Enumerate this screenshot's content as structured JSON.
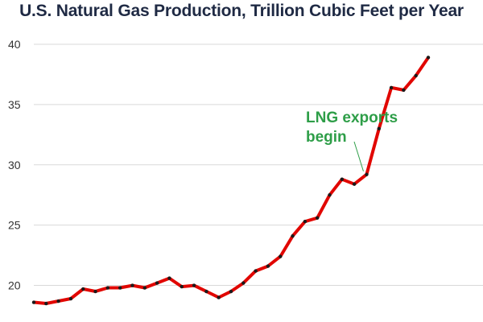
{
  "chart_data": {
    "type": "line",
    "title": "U.S. Natural Gas Production, Trillion Cubic Feet per Year",
    "xlabel": "",
    "ylabel": "",
    "ylim": [
      17.5,
      41
    ],
    "yticks": [
      20,
      25,
      30,
      35,
      40
    ],
    "grid": "horizontal",
    "legend": "none",
    "series": [
      {
        "color": "#e10600",
        "marker_color": "#1a1a1a",
        "values": [
          18.6,
          18.5,
          18.7,
          18.9,
          19.7,
          19.5,
          19.8,
          19.8,
          20.0,
          19.8,
          20.2,
          20.6,
          19.9,
          20.0,
          19.5,
          19.0,
          19.5,
          20.2,
          21.2,
          21.6,
          22.4,
          24.1,
          25.3,
          25.6,
          27.5,
          28.8,
          28.4,
          29.2,
          33.0,
          36.4,
          36.2,
          37.4,
          38.9
        ]
      }
    ],
    "annotations": [
      {
        "text_lines": [
          "LNG exports",
          "begin"
        ],
        "color": "#2e9e48",
        "points_to_index": 27
      }
    ]
  }
}
